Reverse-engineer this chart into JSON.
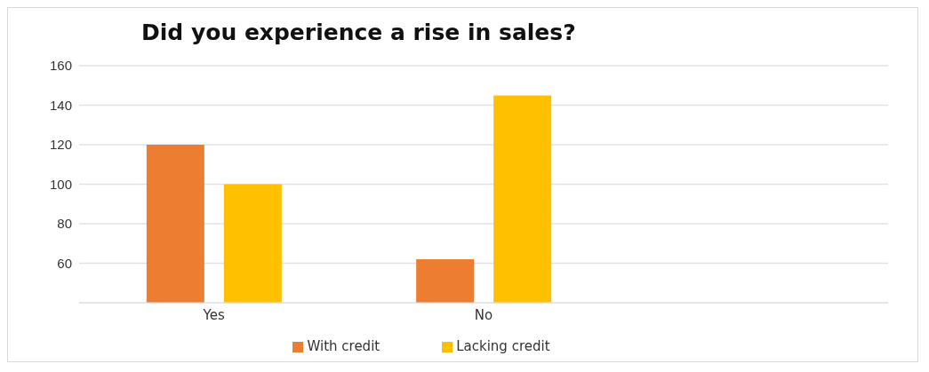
{
  "chart_data": {
    "type": "bar",
    "title": "Did you experience a rise in sales?",
    "categories": [
      "Yes",
      "No",
      null
    ],
    "series": [
      {
        "name": "With credit",
        "color": "#ed7d31",
        "values": [
          120,
          62,
          null
        ]
      },
      {
        "name": "Lacking credit",
        "color": "#ffc000",
        "values": [
          100,
          145,
          null
        ]
      }
    ],
    "ylim": [
      40,
      160
    ],
    "yticks": [
      {
        "value": 40,
        "label": null
      },
      60,
      80,
      100,
      120,
      140,
      160
    ],
    "grid": "y",
    "legend": "bottom"
  }
}
